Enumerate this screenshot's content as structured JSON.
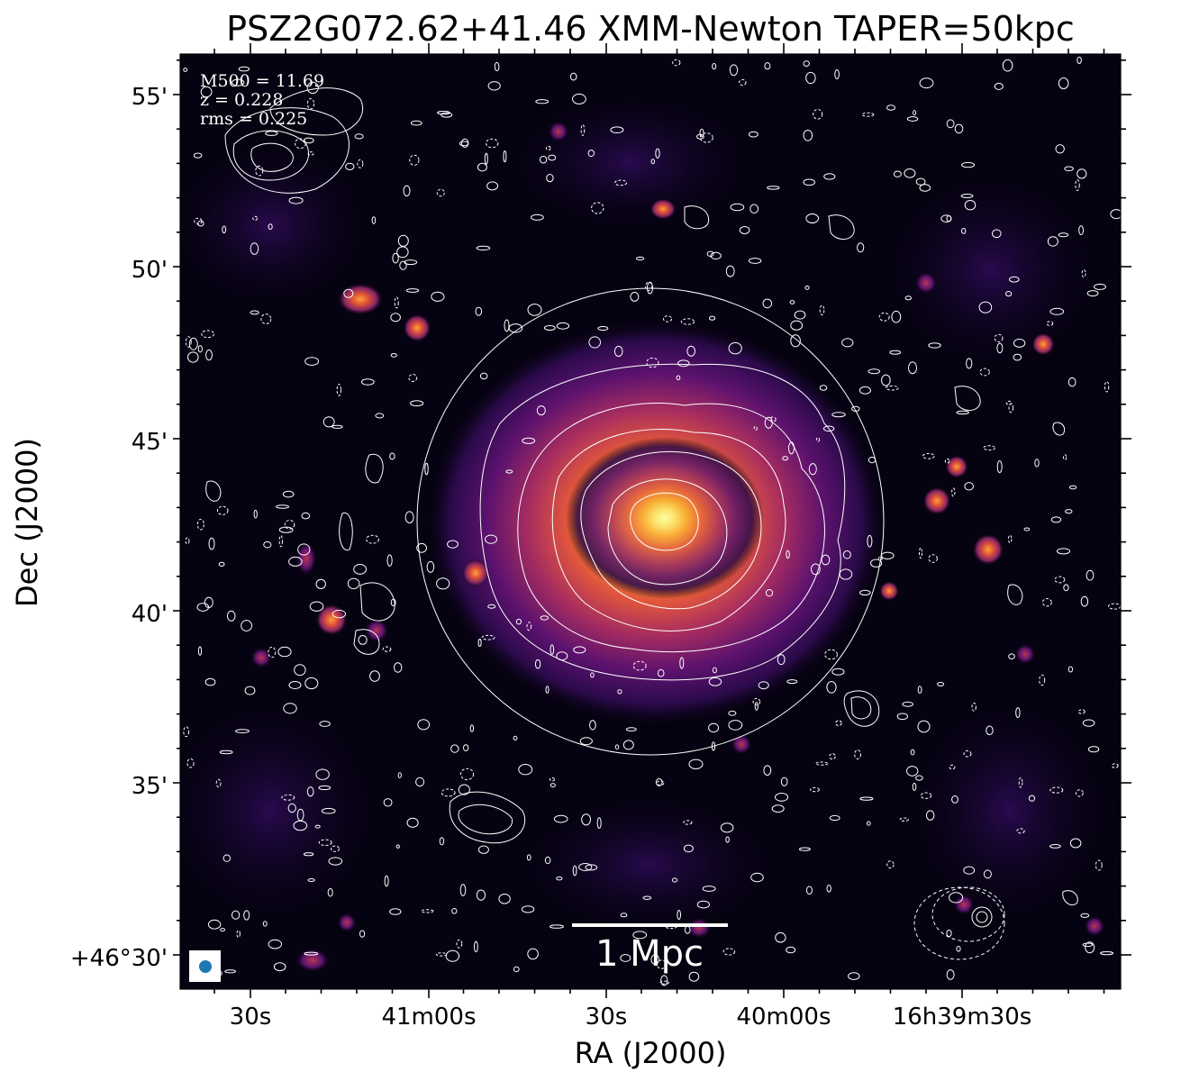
{
  "figure": {
    "title": "PSZ2G072.62+41.46 XMM-Newton TAPER=50kpc",
    "xlabel": "RA (J2000)",
    "ylabel": "Dec (J2000)",
    "x_ticks": [
      "30s",
      "41m00s",
      "30s",
      "40m00s",
      "16h39m30s"
    ],
    "y_ticks": [
      "55'",
      "50'",
      "45'",
      "40'",
      "35'",
      "+46°30'"
    ],
    "annotations": [
      "M500 = 11.69",
      "z = 0.228",
      "rms = 0.225"
    ],
    "scale_bar_label": "1 Mpc",
    "colors": {
      "colormap": [
        "#000004",
        "#320a5e",
        "#781c6d",
        "#bc3754",
        "#ed6925",
        "#fbb61a",
        "#fcffa4"
      ],
      "contours": "#ffffff",
      "beam": "#1f77b4"
    }
  }
}
